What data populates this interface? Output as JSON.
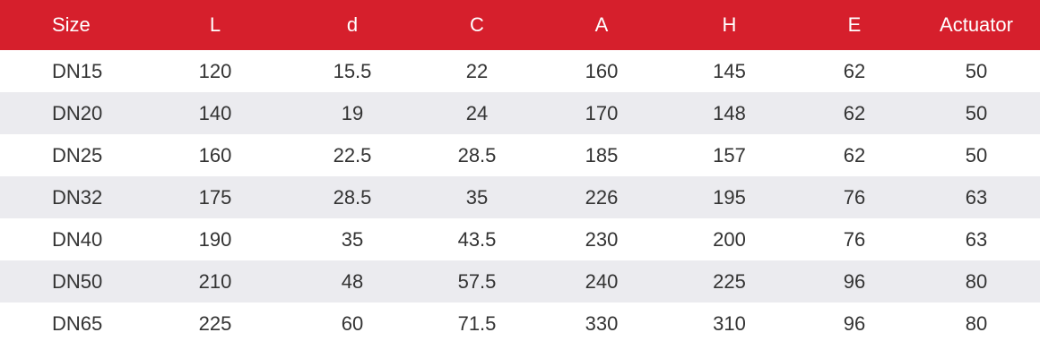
{
  "table": {
    "columns": [
      "Size",
      "L",
      "d",
      "C",
      "A",
      "H",
      "E",
      "Actuator"
    ],
    "rows": [
      [
        "DN15",
        "120",
        "15.5",
        "22",
        "160",
        "145",
        "62",
        "50"
      ],
      [
        "DN20",
        "140",
        "19",
        "24",
        "170",
        "148",
        "62",
        "50"
      ],
      [
        "DN25",
        "160",
        "22.5",
        "28.5",
        "185",
        "157",
        "62",
        "50"
      ],
      [
        "DN32",
        "175",
        "28.5",
        "35",
        "226",
        "195",
        "76",
        "63"
      ],
      [
        "DN40",
        "190",
        "35",
        "43.5",
        "230",
        "200",
        "76",
        "63"
      ],
      [
        "DN50",
        "210",
        "48",
        "57.5",
        "240",
        "225",
        "96",
        "80"
      ],
      [
        "DN65",
        "225",
        "60",
        "71.5",
        "330",
        "310",
        "96",
        "80"
      ]
    ]
  },
  "colors": {
    "header_background": "#d61f2c",
    "header_text": "#ffffff",
    "stripe_background": "#ebebef",
    "body_text": "#333333"
  }
}
